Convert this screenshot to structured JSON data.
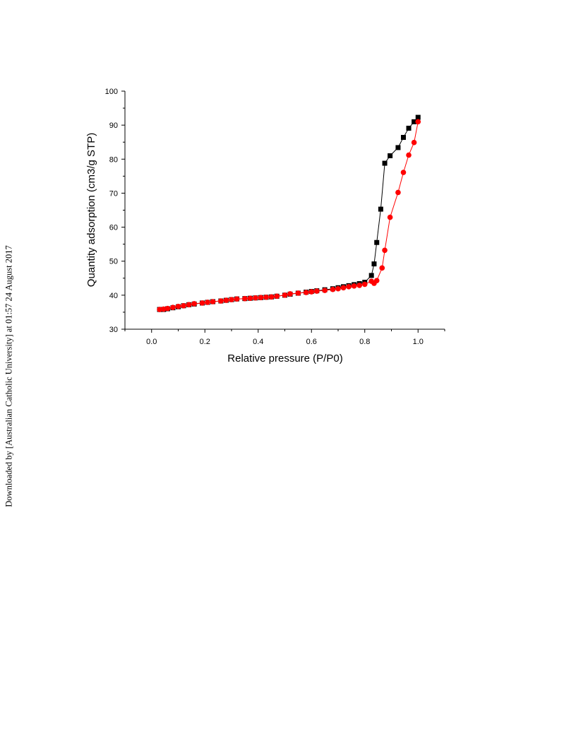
{
  "side_note": "Downloaded by [Australian Catholic University] at 01:57 24 August 2017",
  "chart_data": {
    "type": "scatter",
    "xlabel": "Relative pressure (P/P0)",
    "ylabel": "Quantity adsorption (cm3/g STP)",
    "xlim": [
      -0.1,
      1.1
    ],
    "ylim": [
      30,
      100
    ],
    "xticks": [
      "0.0",
      "0.2",
      "0.4",
      "0.6",
      "0.8",
      "1.0"
    ],
    "xtick_values": [
      0.0,
      0.2,
      0.4,
      0.6,
      0.8,
      1.0
    ],
    "yticks": [
      "30",
      "40",
      "50",
      "60",
      "70",
      "80",
      "90",
      "100"
    ],
    "ytick_values": [
      30,
      40,
      50,
      60,
      70,
      80,
      90,
      100
    ],
    "grid": false,
    "series": [
      {
        "marker": "square",
        "color": "#000000",
        "x": [
          0.03,
          0.045,
          0.06,
          0.08,
          0.1,
          0.12,
          0.14,
          0.16,
          0.19,
          0.21,
          0.23,
          0.26,
          0.28,
          0.3,
          0.32,
          0.35,
          0.37,
          0.39,
          0.41,
          0.43,
          0.45,
          0.47,
          0.5,
          0.52,
          0.55,
          0.58,
          0.6,
          0.62,
          0.65,
          0.68,
          0.7,
          0.72,
          0.74,
          0.76,
          0.78,
          0.8,
          0.825,
          0.835,
          0.845,
          0.86,
          0.875,
          0.895,
          0.925,
          0.945,
          0.965,
          0.985,
          1.0
        ],
        "y": [
          35.8,
          35.8,
          36.0,
          36.3,
          36.6,
          36.9,
          37.2,
          37.4,
          37.7,
          37.9,
          38.1,
          38.3,
          38.5,
          38.7,
          38.9,
          39.0,
          39.1,
          39.2,
          39.3,
          39.4,
          39.5,
          39.7,
          40.0,
          40.3,
          40.6,
          40.9,
          41.1,
          41.3,
          41.6,
          41.9,
          42.2,
          42.5,
          42.8,
          43.1,
          43.4,
          43.8,
          45.8,
          49.2,
          55.5,
          65.3,
          78.8,
          81.0,
          83.4,
          86.4,
          89.1,
          91.0,
          92.3
        ]
      },
      {
        "marker": "circle",
        "color": "#ff0000",
        "x": [
          1.0,
          0.985,
          0.965,
          0.945,
          0.925,
          0.895,
          0.875,
          0.865,
          0.845,
          0.835,
          0.825,
          0.8,
          0.78,
          0.76,
          0.74,
          0.72,
          0.7,
          0.68,
          0.65,
          0.62,
          0.6,
          0.58,
          0.55,
          0.52,
          0.5,
          0.47,
          0.45,
          0.43,
          0.41,
          0.39,
          0.37,
          0.35,
          0.32,
          0.3,
          0.28,
          0.26,
          0.23,
          0.21,
          0.19,
          0.16,
          0.14,
          0.12,
          0.1,
          0.08,
          0.06,
          0.045,
          0.03
        ],
        "y": [
          91.0,
          84.9,
          81.2,
          76.1,
          70.2,
          62.9,
          53.2,
          48.0,
          44.3,
          43.5,
          44.1,
          43.2,
          42.9,
          42.7,
          42.5,
          42.2,
          41.9,
          41.7,
          41.4,
          41.2,
          41.0,
          40.8,
          40.6,
          40.4,
          40.0,
          39.7,
          39.5,
          39.4,
          39.3,
          39.2,
          39.1,
          39.0,
          38.9,
          38.7,
          38.5,
          38.3,
          38.1,
          37.9,
          37.7,
          37.5,
          37.2,
          36.9,
          36.7,
          36.4,
          36.1,
          35.9,
          35.8
        ]
      }
    ]
  }
}
